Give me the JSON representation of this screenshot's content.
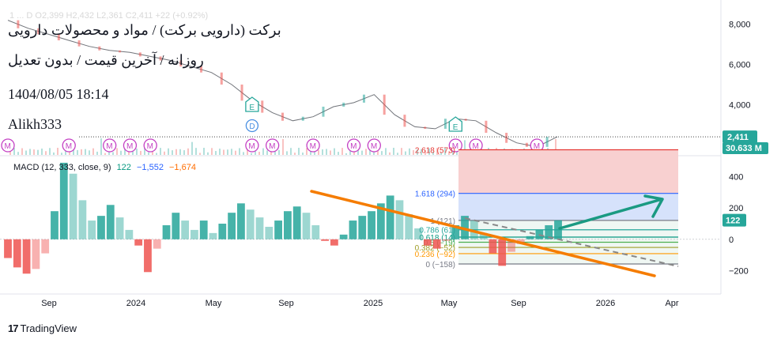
{
  "header": {
    "ticker_ghost": "1 ...  D  O2,399  H2,432  L2,361  C2,411  +22 (+0.92%)",
    "title": "برکت (دارویی برکت) / مواد و محصولات دارویی",
    "subtitle": "روزانه / آخرین قیمت / بدون تعدیل",
    "datetime": "1404/08/05 18:14",
    "author": "Alikh333"
  },
  "macd_legend": {
    "label": "MACD (12, 333, close, 9)",
    "hist": "122",
    "macd": "−1,552",
    "signal": "−1,674"
  },
  "branding": {
    "name": "TradingView"
  },
  "colors": {
    "price_line": "#131722",
    "up": "#26a69a",
    "down": "#ef5350",
    "hist_up": "#26a69a",
    "hist_down": "#ef5350",
    "fib_zone_red": "#f8d0d0",
    "fib_zone_blue": "#d6e2fb",
    "trend_orange": "#f57c00",
    "arrow_teal": "#1a9a82",
    "dashed": "#888888",
    "marker_m": "#c440c4",
    "marker_e": "#26a69a",
    "marker_d": "#4a90e2"
  },
  "chart_data": [
    {
      "type": "line",
      "name": "price",
      "yticks": [
        2000,
        4000,
        6000,
        8000
      ],
      "ytick_labels": [
        "2,000",
        "4,000",
        "6,000",
        "8,000"
      ],
      "ylim": [
        1500,
        8500
      ],
      "last_price": "2,411",
      "volume_label": "30.633 M",
      "x": [
        "2023-07",
        "2023-08",
        "2023-09",
        "2023-10",
        "2023-11",
        "2023-12",
        "2024-01",
        "2024-02",
        "2024-03",
        "2024-04",
        "2024-05",
        "2024-06",
        "2024-07",
        "2024-08",
        "2024-09",
        "2024-10",
        "2024-11",
        "2024-12",
        "2025-01",
        "2025-02",
        "2025-03",
        "2025-04",
        "2025-05",
        "2025-06",
        "2025-07",
        "2025-08",
        "2025-09",
        "2025-10"
      ],
      "values": [
        8200,
        7800,
        7500,
        7200,
        6900,
        6700,
        6600,
        6400,
        6200,
        5900,
        5600,
        5000,
        4200,
        3600,
        3200,
        3400,
        3900,
        4100,
        4500,
        3500,
        2900,
        2800,
        3300,
        3200,
        2600,
        2100,
        1900,
        2400
      ],
      "markers": [
        {
          "label": "E",
          "date": "2024-07",
          "kind": "earnings"
        },
        {
          "label": "D",
          "date": "2024-07",
          "kind": "dividend"
        },
        {
          "label": "E",
          "date": "2025-05",
          "kind": "earnings"
        }
      ],
      "m_markers": [
        "2023-06",
        "2023-07",
        "2023-10",
        "2023-12",
        "2024-01",
        "2024-02",
        "2024-07",
        "2024-08",
        "2024-10",
        "2024-12",
        "2025-01",
        "2025-05",
        "2025-06",
        "2025-09"
      ]
    },
    {
      "type": "bar",
      "name": "MACD histogram",
      "yticks": [
        -200,
        0,
        200,
        400
      ],
      "ytick_labels": [
        "−200",
        "0",
        "200",
        "400"
      ],
      "ylim": [
        -330,
        520
      ],
      "current_value": "122",
      "xticks": [
        "Sep",
        "2024",
        "May",
        "Sep",
        "2025",
        "May",
        "Sep",
        "2026",
        "Apr"
      ],
      "values": [
        -120,
        -180,
        -220,
        -190,
        -90,
        180,
        490,
        420,
        250,
        120,
        150,
        220,
        140,
        60,
        -40,
        -210,
        -60,
        90,
        170,
        120,
        60,
        120,
        40,
        100,
        170,
        230,
        190,
        140,
        80,
        120,
        180,
        210,
        170,
        90,
        -10,
        -40,
        30,
        120,
        150,
        180,
        230,
        280,
        250,
        160,
        70,
        -40,
        -60,
        -10,
        90,
        150,
        120,
        40,
        -90,
        -170,
        -80,
        -30,
        20,
        60,
        90,
        122
      ],
      "fib_levels": [
        {
          "label": "2.618 (573)",
          "value": 573
        },
        {
          "label": "1.618 (294)",
          "value": 294
        },
        {
          "label": "1 (121)",
          "value": 121
        },
        {
          "label": "0.786 (61)",
          "value": 61
        },
        {
          "label": "0.618 (14)",
          "value": 14
        },
        {
          "label": "0.5 (−19)",
          "value": -19
        },
        {
          "label": "0.382 (−52)",
          "value": -52
        },
        {
          "label": "0.236 (−92)",
          "value": -92
        },
        {
          "label": "0 (−158)",
          "value": -158
        }
      ]
    }
  ]
}
